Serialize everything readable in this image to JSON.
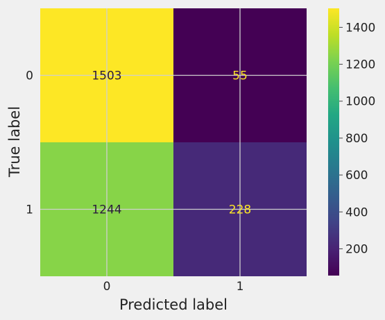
{
  "chart_data": {
    "type": "heatmap",
    "title": "",
    "xlabel": "Predicted label",
    "ylabel": "True label",
    "x_categories": [
      "0",
      "1"
    ],
    "y_categories": [
      "0",
      "1"
    ],
    "values": [
      [
        1503,
        55
      ],
      [
        1244,
        228
      ]
    ],
    "colormap": "viridis",
    "color_range": [
      55,
      1503
    ],
    "colorbar_ticks": [
      200,
      400,
      600,
      800,
      1000,
      1200,
      1400
    ],
    "grid": true,
    "background": "#f0f0f0",
    "text_color_light": "#fde725",
    "text_color_dark": "#2b1a3e"
  }
}
